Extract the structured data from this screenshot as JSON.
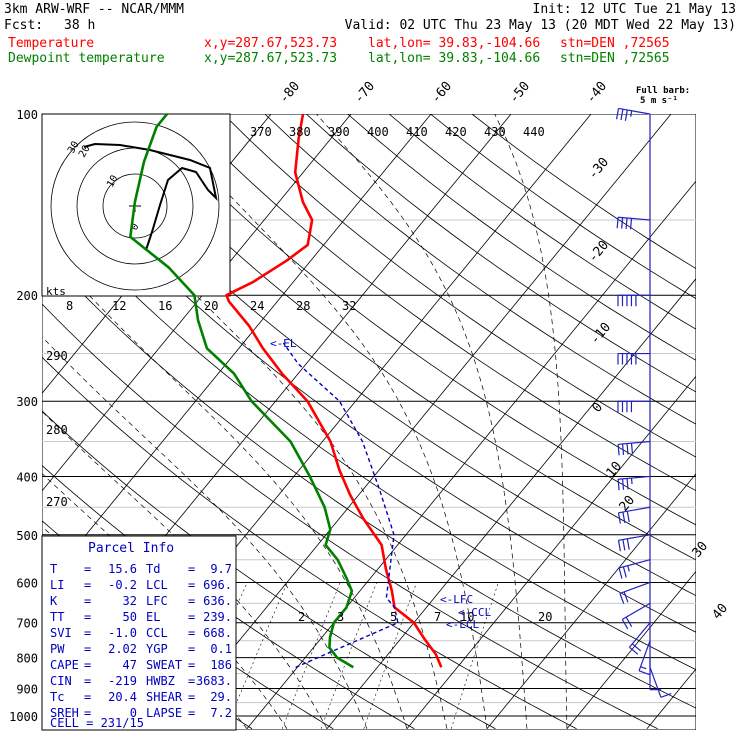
{
  "header": {
    "model": "3km ARW-WRF -- NCAR/MMM",
    "init": "Init: 12 UTC Tue 21 May 13",
    "fcst_label": "Fcst:",
    "fcst_value": "38 h",
    "valid": "Valid: 02 UTC Thu 23 May 13 (20 MDT Wed 22 May 13)",
    "temp_label": "Temperature",
    "dewpt_label": "Dewpoint temperature",
    "xy": "x,y=287.67,523.73",
    "latlon": "lat,lon= 39.83,-104.66",
    "stn": "stn=DEN ,72565"
  },
  "colors": {
    "temperature": "#ff0000",
    "dewpoint": "#008000",
    "parcel": "#0000c0",
    "wind": "#2020c0",
    "isobar": "#000000"
  },
  "labels": {
    "kts": "kts",
    "full_barb_1": "Full barb:",
    "full_barb_2": "5 m s⁻¹",
    "el": "<-EL",
    "lfc": "<-LFC",
    "ccl": "<-CCL",
    "lcl": "<-LCL"
  },
  "parcel_info": {
    "title": "Parcel Info",
    "rows": [
      {
        "l1": "T",
        "v1": "15.6",
        "l2": "Td",
        "v2": "9.7"
      },
      {
        "l1": "LI",
        "v1": "-0.2",
        "l2": "LCL",
        "v2": "696."
      },
      {
        "l1": "K",
        "v1": "32",
        "l2": "LFC",
        "v2": "636."
      },
      {
        "l1": "TT",
        "v1": "50",
        "l2": "EL",
        "v2": "239."
      },
      {
        "l1": "SVI",
        "v1": "-1.0",
        "l2": "CCL",
        "v2": "668."
      },
      {
        "l1": "PW",
        "v1": "2.02",
        "l2": "YGP",
        "v2": "0.1"
      },
      {
        "l1": "CAPE",
        "v1": "47",
        "l2": "SWEAT",
        "v2": "186"
      },
      {
        "l1": "CIN",
        "v1": "-219",
        "l2": "HWBZ",
        "v2": "3683."
      },
      {
        "l1": "Tc",
        "v1": "20.4",
        "l2": "SHEAR",
        "v2": "29."
      },
      {
        "l1": "SREH",
        "v1": "0",
        "l2": "LAPSE",
        "v2": "7.2"
      }
    ],
    "cell": "CELL = 231/15"
  },
  "chart_data": {
    "type": "line",
    "chart_kind": "skew-T log-P sounding",
    "y_axis": {
      "scale": "log",
      "units": "hPa",
      "ylim": [
        1000,
        100
      ],
      "ticks": [
        "100",
        "200",
        "300",
        "400",
        "500",
        "600",
        "700",
        "800",
        "900",
        "1000"
      ]
    },
    "isotherm_labels": [
      "-80",
      "-70",
      "-60",
      "-50",
      "-40",
      "-30",
      "-20",
      "-10",
      "0",
      "10",
      "20",
      "30",
      "40"
    ],
    "theta_labels": [
      "370",
      "380",
      "390",
      "400",
      "410",
      "420",
      "430",
      "440"
    ],
    "theta_labels_left": [
      "290",
      "280",
      "270"
    ],
    "mixing_ratio_labels": [
      "2",
      "3",
      "5",
      "7",
      "10",
      "20"
    ],
    "hodograph_ring_labels": [
      "8",
      "12",
      "16",
      "20",
      "24",
      "28",
      "32"
    ],
    "hodograph_axis_labels": [
      "0",
      "10",
      "20",
      "30"
    ],
    "series": [
      {
        "name": "Temperature",
        "color": "#ff0000",
        "points": [
          [
            830,
            18
          ],
          [
            790,
            16
          ],
          [
            745,
            13
          ],
          [
            700,
            10
          ],
          [
            660,
            6
          ],
          [
            620,
            4
          ],
          [
            570,
            1
          ],
          [
            520,
            -2
          ],
          [
            470,
            -7
          ],
          [
            430,
            -11
          ],
          [
            390,
            -15
          ],
          [
            350,
            -19
          ],
          [
            300,
            -26
          ],
          [
            270,
            -32
          ],
          [
            245,
            -37
          ],
          [
            225,
            -41
          ],
          [
            205,
            -46
          ],
          [
            200,
            -47
          ],
          [
            190,
            -45
          ],
          [
            175,
            -43
          ],
          [
            165,
            -42
          ],
          [
            150,
            -44
          ],
          [
            140,
            -47
          ],
          [
            125,
            -51
          ],
          [
            110,
            -54
          ],
          [
            100,
            -56
          ]
        ]
      },
      {
        "name": "Dewpoint temperature",
        "color": "#008000",
        "points": [
          [
            830,
            7
          ],
          [
            800,
            4
          ],
          [
            770,
            2
          ],
          [
            740,
            1
          ],
          [
            700,
            0
          ],
          [
            660,
            0
          ],
          [
            620,
            -1
          ],
          [
            590,
            -3
          ],
          [
            550,
            -6
          ],
          [
            520,
            -9
          ],
          [
            490,
            -10
          ],
          [
            450,
            -13
          ],
          [
            400,
            -18
          ],
          [
            350,
            -24
          ],
          [
            300,
            -33
          ],
          [
            270,
            -38
          ],
          [
            245,
            -44
          ],
          [
            220,
            -48
          ],
          [
            200,
            -51
          ],
          [
            180,
            -57
          ],
          [
            160,
            -65
          ],
          [
            140,
            -68
          ],
          [
            120,
            -71
          ],
          [
            105,
            -73
          ],
          [
            100,
            -73
          ]
        ]
      }
    ],
    "wind_profile": {
      "units": "m s-1, full barb = 5 m s-1",
      "levels_hpa": [
        830,
        800,
        750,
        700,
        650,
        600,
        550,
        500,
        450,
        400,
        350,
        300,
        250,
        200,
        150,
        100
      ],
      "dir_deg": [
        160,
        180,
        200,
        220,
        240,
        250,
        255,
        260,
        260,
        265,
        265,
        270,
        270,
        270,
        275,
        280
      ],
      "speed_ms": [
        5,
        6,
        8,
        10,
        10,
        12,
        13,
        15,
        17,
        18,
        20,
        22,
        25,
        25,
        22,
        18
      ]
    }
  }
}
